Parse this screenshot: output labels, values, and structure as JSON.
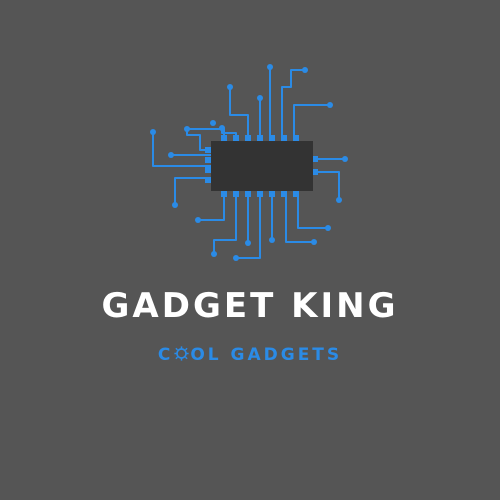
{
  "brand": {
    "name": "GADGET KING",
    "tagline_before": "C",
    "tagline_after": "OL GADGETS"
  },
  "colors": {
    "background": "#555555",
    "chip": "#333333",
    "accent": "#2b8be6",
    "text": "#ffffff"
  },
  "icons": {
    "logo": "microchip-circuit-icon",
    "tagline_glyph": "gear-icon"
  }
}
